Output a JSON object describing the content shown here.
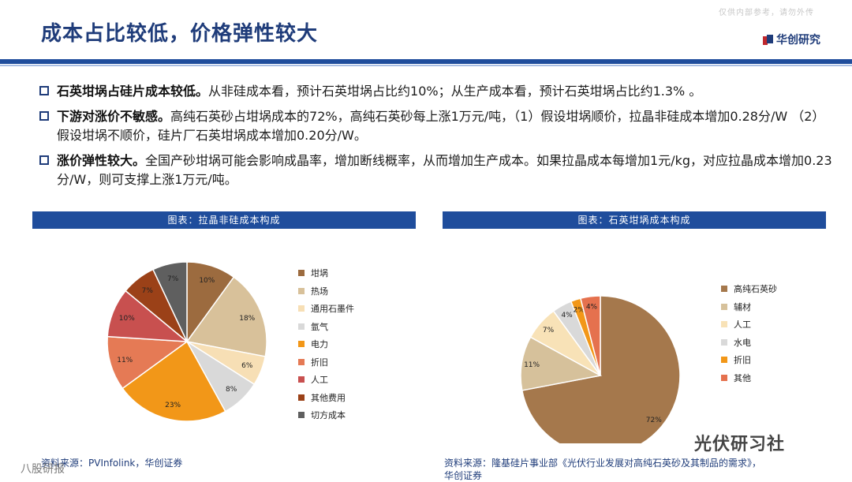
{
  "watermark_top": "仅供内部参考，请勿外传",
  "title": "成本占比较低，价格弹性较大",
  "brand": {
    "name": "华创研究",
    "colors": {
      "red": "#c0282d",
      "blue": "#1f3c7a"
    }
  },
  "bullets": [
    {
      "lead": "石英坩埚占硅片成本较低。",
      "text": "从非硅成本看，预计石英坩埚占比约10%；从生产成本看，预计石英坩埚占比约1.3% 。"
    },
    {
      "lead": "下游对涨价不敏感。",
      "text": "高纯石英砂占坩埚成本的72%，高纯石英砂每上涨1万元/吨，（1）假设坩埚顺价，拉晶非硅成本增加0.28分/W （2）假设坩埚不顺价，硅片厂石英坩埚成本增加0.20分/W。"
    },
    {
      "lead": "涨价弹性较大。",
      "text": "全国产砂坩埚可能会影响成晶率，增加断线概率，从而增加生产成本。如果拉晶成本每增加1元/kg，对应拉晶成本增加0.23分/W，则可支撑上涨1万元/吨。"
    }
  ],
  "chart_data": [
    {
      "type": "pie",
      "title": "图表：拉晶非硅成本构成",
      "categories": [
        "坩埚",
        "热场",
        "通用石墨件",
        "氩气",
        "电力",
        "折旧",
        "人工",
        "其他费用",
        "切方成本"
      ],
      "values": [
        10,
        18,
        6,
        8,
        23,
        11,
        10,
        7,
        7
      ],
      "labels": [
        "10%",
        "18%",
        "6%",
        "8%",
        "23%",
        "11%",
        "10%",
        "7%",
        "7%"
      ],
      "colors": [
        "#9c6b3f",
        "#d8c19a",
        "#f7dfb5",
        "#d9d9d9",
        "#f29718",
        "#e57a55",
        "#c8504f",
        "#9b4118",
        "#5f5f5f"
      ],
      "legend_position": "right"
    },
    {
      "type": "pie",
      "title": "图表：石英坩埚成本构成",
      "categories": [
        "高纯石英砂",
        "辅材",
        "人工",
        "水电",
        "折旧",
        "其他"
      ],
      "values": [
        72,
        11,
        7,
        4,
        2,
        4
      ],
      "labels": [
        "72%",
        "11%",
        "7%",
        "4%",
        "2%",
        "4%"
      ],
      "colors": [
        "#a5784c",
        "#d6c19b",
        "#f8e2b7",
        "#d9d9d9",
        "#f29718",
        "#e5714e"
      ],
      "legend_position": "right"
    }
  ],
  "sources": {
    "left": "资料来源：PVInfolink，华创证券",
    "right_line1": "资料来源：隆基硅片事业部《光伏行业发展对高纯石英砂及其制品的需求》，",
    "right_line2": "华创证券"
  },
  "stamps": {
    "wechat": "光伏研习社",
    "corner": "八股研报"
  }
}
